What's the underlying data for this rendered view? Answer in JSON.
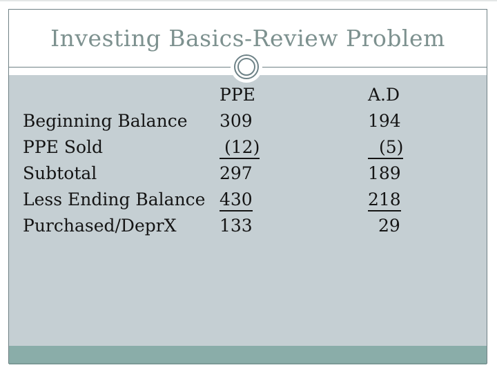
{
  "slide": {
    "title": "Investing Basics-Review Problem"
  },
  "table": {
    "columns": {
      "label": "",
      "ppe": "PPE",
      "ad": "A.D"
    },
    "rows": [
      {
        "label": "Beginning Balance",
        "ppe": "309",
        "ad": "194",
        "ppe_underline": false,
        "ad_underline": false
      },
      {
        "label": "PPE Sold",
        "ppe": "(12)",
        "ad": "(5)",
        "ppe_underline": true,
        "ad_underline": true
      },
      {
        "label": "Subtotal",
        "ppe": "297",
        "ad": "189",
        "ppe_underline": false,
        "ad_underline": false
      },
      {
        "label": "Less Ending Balance",
        "ppe": "430",
        "ad": "218",
        "ppe_underline": true,
        "ad_underline": true
      },
      {
        "label": "Purchased/DeprX",
        "ppe": "133",
        "ad": "29",
        "ppe_underline": false,
        "ad_underline": false
      }
    ]
  },
  "icons": {
    "ornament": "double-ring-circle-icon"
  },
  "colors": {
    "title_text": "#7D918F",
    "panel_background": "#C5CFD3",
    "footer_band": "#8AADA9",
    "frame_border": "#6F8084",
    "table_text": "#141414"
  }
}
